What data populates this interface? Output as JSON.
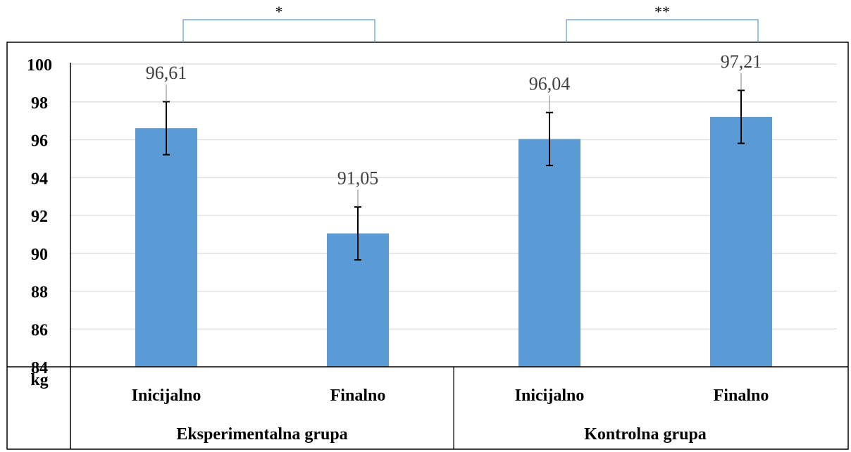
{
  "chart_data": {
    "type": "bar",
    "groups": [
      {
        "name": "Eksperimentalna grupa",
        "categories": [
          "Inicijalno",
          "Finalno"
        ],
        "significance": "*"
      },
      {
        "name": "Kontrolna grupa",
        "categories": [
          "Inicijalno",
          "Finalno"
        ],
        "significance": "**"
      }
    ],
    "categories": [
      "Inicijalno",
      "Finalno",
      "Inicijalno",
      "Finalno"
    ],
    "values": [
      96.61,
      91.05,
      96.04,
      97.21
    ],
    "value_labels": [
      "96,61",
      "91,05",
      "96,04",
      "97,21"
    ],
    "error": [
      1.4,
      1.4,
      1.4,
      1.4
    ],
    "ylabel": "kg",
    "ylim": [
      84,
      100
    ],
    "yticks": [
      84,
      86,
      88,
      90,
      92,
      94,
      96,
      98,
      100
    ],
    "grid": true,
    "colors": {
      "bar": "#5B9BD5",
      "grid": "#D9D9D9",
      "bracket": "#5B9BD5",
      "error_bar": "#000000"
    }
  }
}
